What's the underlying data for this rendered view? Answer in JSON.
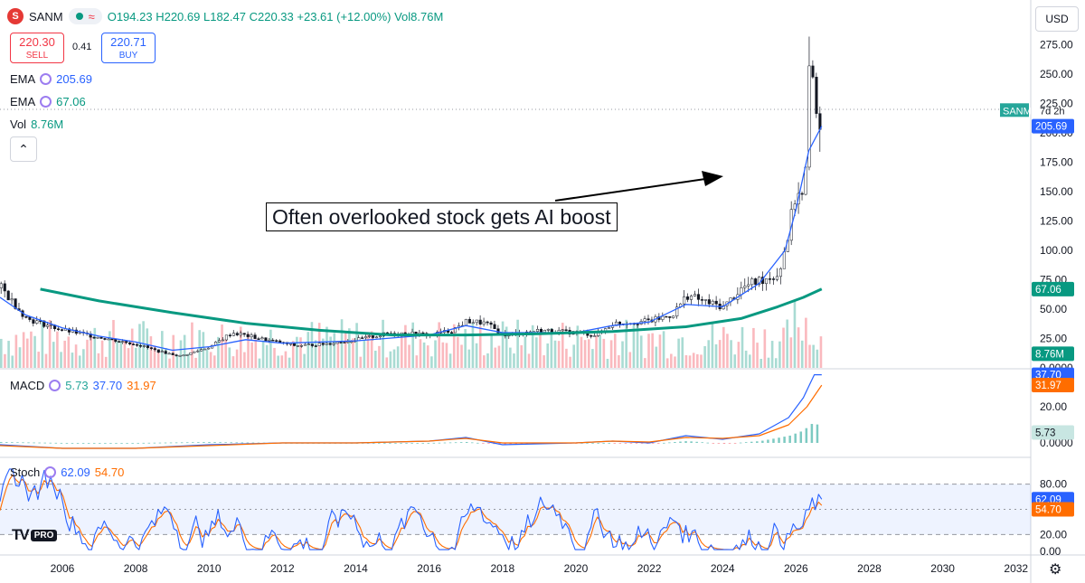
{
  "header": {
    "ticker": "SANM",
    "open": "O194.23",
    "high": "H220.69",
    "low": "L182.47",
    "close": "C220.33",
    "change": "+23.61 (+12.00%)",
    "volume": "Vol8.76M",
    "sell_price": "220.30",
    "sell_label": "SELL",
    "spread": "0.41",
    "buy_price": "220.71",
    "buy_label": "BUY",
    "currency": "USD"
  },
  "indicators": {
    "ema1": {
      "label": "EMA",
      "value": "205.69",
      "color": "#2962ff"
    },
    "ema2": {
      "label": "EMA",
      "value": "67.06",
      "color": "#089981"
    },
    "vol": {
      "label": "Vol",
      "value": "8.76M",
      "color": "#089981"
    },
    "macd": {
      "label": "MACD",
      "hist": "5.73",
      "macd": "37.70",
      "signal": "31.97"
    },
    "stoch": {
      "label": "Stoch",
      "k": "62.09",
      "d": "54.70"
    }
  },
  "annotation": {
    "text": "Often overlooked stock gets AI boost"
  },
  "branding": {
    "tv": "TV",
    "pro": "PRO"
  },
  "icons": {
    "logo": "sanmina-logo-icon",
    "collapse": "chevron-up-icon",
    "settings": "gear-icon",
    "arrow": "annotation-arrow-icon"
  },
  "chart_data": {
    "type": "candlestick",
    "x_axis_years": [
      "2006",
      "2008",
      "2010",
      "2012",
      "2014",
      "2016",
      "2018",
      "2020",
      "2022",
      "2024",
      "2026",
      "2028",
      "2030",
      "2032"
    ],
    "price_axis": {
      "ticks": [
        "275.00",
        "250.00",
        "225.00",
        "200.00",
        "175.00",
        "150.00",
        "125.00",
        "100.00",
        "75.00",
        "50.00",
        "25.00",
        "0.0000"
      ],
      "ylim": [
        0,
        290
      ]
    },
    "price_labels": {
      "ema_fast": "205.69",
      "ema_slow": "67.06",
      "volume": "8.76M",
      "series_tag": "SANM",
      "interval_tag": "7d 2h"
    },
    "series": [
      {
        "name": "Price",
        "points": [
          [
            2004.3,
            68
          ],
          [
            2005,
            42
          ],
          [
            2006,
            32
          ],
          [
            2007,
            26
          ],
          [
            2008,
            20
          ],
          [
            2008.6,
            14
          ],
          [
            2009.2,
            10
          ],
          [
            2010,
            18
          ],
          [
            2010.6,
            30
          ],
          [
            2011.5,
            24
          ],
          [
            2012.3,
            19
          ],
          [
            2013,
            20
          ],
          [
            2014,
            24
          ],
          [
            2015,
            30
          ],
          [
            2016,
            28
          ],
          [
            2016.6,
            32
          ],
          [
            2017,
            40
          ],
          [
            2017.5,
            38
          ],
          [
            2018,
            28
          ],
          [
            2019,
            32
          ],
          [
            2020,
            30
          ],
          [
            2020.5,
            28
          ],
          [
            2021,
            38
          ],
          [
            2022,
            40
          ],
          [
            2022.6,
            45
          ],
          [
            2023,
            62
          ],
          [
            2023.6,
            55
          ],
          [
            2024,
            52
          ],
          [
            2024.5,
            68
          ],
          [
            2025,
            75
          ],
          [
            2025.5,
            80
          ],
          [
            2025.8,
            120
          ],
          [
            2026.0,
            155
          ],
          [
            2026.2,
            140
          ],
          [
            2026.35,
            262
          ],
          [
            2026.5,
            230
          ],
          [
            2026.6,
            208
          ],
          [
            2026.7,
            220
          ]
        ]
      },
      {
        "name": "EMA",
        "points": [
          [
            2004.3,
            60
          ],
          [
            2005,
            45
          ],
          [
            2006,
            34
          ],
          [
            2007,
            27
          ],
          [
            2008,
            22
          ],
          [
            2009,
            15
          ],
          [
            2010,
            18
          ],
          [
            2011,
            24
          ],
          [
            2012,
            21
          ],
          [
            2014,
            23
          ],
          [
            2016,
            28
          ],
          [
            2017,
            36
          ],
          [
            2018,
            30
          ],
          [
            2020,
            30
          ],
          [
            2021,
            36
          ],
          [
            2022,
            39
          ],
          [
            2023,
            54
          ],
          [
            2024,
            52
          ],
          [
            2025,
            72
          ],
          [
            2025.7,
            100
          ],
          [
            2026,
            135
          ],
          [
            2026.35,
            185
          ],
          [
            2026.7,
            205.69
          ]
        ]
      },
      {
        "name": "EMA",
        "points": [
          [
            2005.4,
            67
          ],
          [
            2007,
            57
          ],
          [
            2009,
            47
          ],
          [
            2011,
            38
          ],
          [
            2013,
            32
          ],
          [
            2015,
            28
          ],
          [
            2017,
            28
          ],
          [
            2019,
            29
          ],
          [
            2021,
            31
          ],
          [
            2023,
            35
          ],
          [
            2024.5,
            42
          ],
          [
            2025.5,
            52
          ],
          [
            2026.2,
            60
          ],
          [
            2026.7,
            67.06
          ]
        ]
      }
    ],
    "macd": {
      "ylim": [
        -5,
        40
      ],
      "ticks": [
        "20.00",
        "0.0000"
      ],
      "macd_last": "37.70",
      "signal_last": "31.97",
      "hist_last": "5.73"
    },
    "stoch": {
      "ylim": [
        0,
        100
      ],
      "ticks": [
        "80.00",
        "20.00",
        "0.00"
      ],
      "band": [
        20,
        80
      ],
      "k_last": "62.09",
      "d_last": "54.70"
    }
  }
}
